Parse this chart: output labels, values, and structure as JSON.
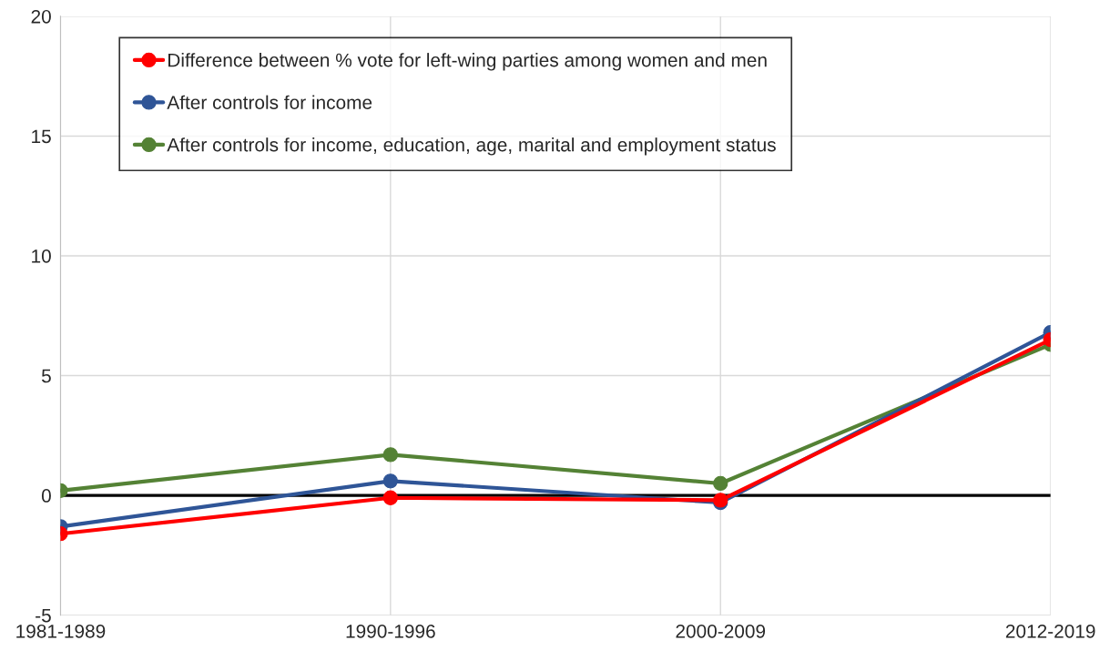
{
  "chart_data": {
    "type": "line",
    "categories": [
      "1981-1989",
      "1990-1996",
      "2000-2009",
      "2012-2019"
    ],
    "series": [
      {
        "name": "Difference between % vote for left-wing parties among women and men",
        "color": "#ff0000",
        "values": [
          -1.6,
          -0.1,
          -0.2,
          6.5
        ]
      },
      {
        "name": "After controls for income",
        "color": "#2f5597",
        "values": [
          -1.3,
          0.6,
          -0.3,
          6.8
        ]
      },
      {
        "name": "After controls for income, education, age, marital and employment status",
        "color": "#548235",
        "values": [
          0.2,
          1.7,
          0.5,
          6.3
        ]
      }
    ],
    "ylim": [
      -5,
      20
    ],
    "yticks": [
      -5,
      0,
      5,
      10,
      15,
      20
    ],
    "ref_lines": [
      {
        "axis": "y",
        "value": 0,
        "color": "#000000"
      }
    ],
    "grid": true,
    "legend": "top left",
    "marker": "circle",
    "line_style": "solid"
  }
}
